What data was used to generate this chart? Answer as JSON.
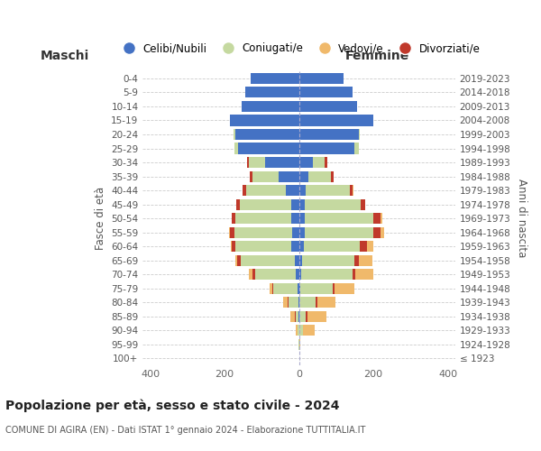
{
  "age_groups": [
    "100+",
    "95-99",
    "90-94",
    "85-89",
    "80-84",
    "75-79",
    "70-74",
    "65-69",
    "60-64",
    "55-59",
    "50-54",
    "45-49",
    "40-44",
    "35-39",
    "30-34",
    "25-29",
    "20-24",
    "15-19",
    "10-14",
    "5-9",
    "0-4"
  ],
  "birth_years": [
    "≤ 1923",
    "1924-1928",
    "1929-1933",
    "1934-1938",
    "1939-1943",
    "1944-1948",
    "1949-1953",
    "1954-1958",
    "1959-1963",
    "1964-1968",
    "1969-1973",
    "1974-1978",
    "1979-1983",
    "1984-1988",
    "1989-1993",
    "1994-1998",
    "1999-2003",
    "2004-2008",
    "2009-2013",
    "2014-2018",
    "2019-2023"
  ],
  "colors": {
    "celibi": "#4472c4",
    "coniugati": "#c5d9a0",
    "vedovi": "#f0b96b",
    "divorziati": "#c0392b"
  },
  "maschi": {
    "celibi": [
      0,
      0,
      0,
      1,
      2,
      4,
      8,
      12,
      20,
      18,
      22,
      22,
      35,
      55,
      90,
      165,
      170,
      185,
      155,
      145,
      130
    ],
    "coniugati": [
      0,
      1,
      4,
      8,
      25,
      65,
      110,
      145,
      150,
      155,
      148,
      138,
      108,
      70,
      45,
      8,
      6,
      0,
      0,
      0,
      0
    ],
    "vedovi": [
      0,
      1,
      5,
      12,
      12,
      8,
      8,
      5,
      2,
      2,
      1,
      0,
      0,
      0,
      0,
      0,
      0,
      0,
      0,
      0,
      0
    ],
    "divorziati": [
      0,
      0,
      0,
      2,
      3,
      3,
      8,
      10,
      12,
      12,
      10,
      8,
      8,
      8,
      5,
      0,
      0,
      0,
      0,
      0,
      0
    ]
  },
  "femmine": {
    "celibi": [
      0,
      0,
      2,
      2,
      2,
      3,
      5,
      8,
      12,
      15,
      15,
      15,
      18,
      25,
      38,
      150,
      160,
      200,
      155,
      145,
      120
    ],
    "coniugati": [
      0,
      0,
      8,
      15,
      42,
      88,
      138,
      142,
      152,
      185,
      185,
      150,
      118,
      62,
      32,
      10,
      4,
      0,
      0,
      0,
      0
    ],
    "vedovi": [
      2,
      4,
      32,
      52,
      50,
      52,
      48,
      38,
      18,
      10,
      4,
      2,
      2,
      0,
      0,
      0,
      0,
      0,
      0,
      0,
      0
    ],
    "divorziati": [
      0,
      0,
      0,
      5,
      5,
      5,
      8,
      10,
      18,
      20,
      20,
      12,
      8,
      5,
      5,
      0,
      0,
      0,
      0,
      0,
      0
    ]
  },
  "title": "Popolazione per età, sesso e stato civile - 2024",
  "subtitle": "COMUNE DI AGIRA (EN) - Dati ISTAT 1° gennaio 2024 - Elaborazione TUTTITALIA.IT",
  "header_left": "Maschi",
  "header_right": "Femmine",
  "ylabel_left": "Fasce di età",
  "ylabel_right": "Anni di nascita",
  "xlim": 420,
  "xticks": [
    -400,
    -200,
    0,
    200,
    400
  ],
  "legend_labels": [
    "Celibi/Nubili",
    "Coniugati/e",
    "Vedovi/e",
    "Divorziati/e"
  ],
  "background_color": "#ffffff",
  "grid_color": "#cccccc"
}
